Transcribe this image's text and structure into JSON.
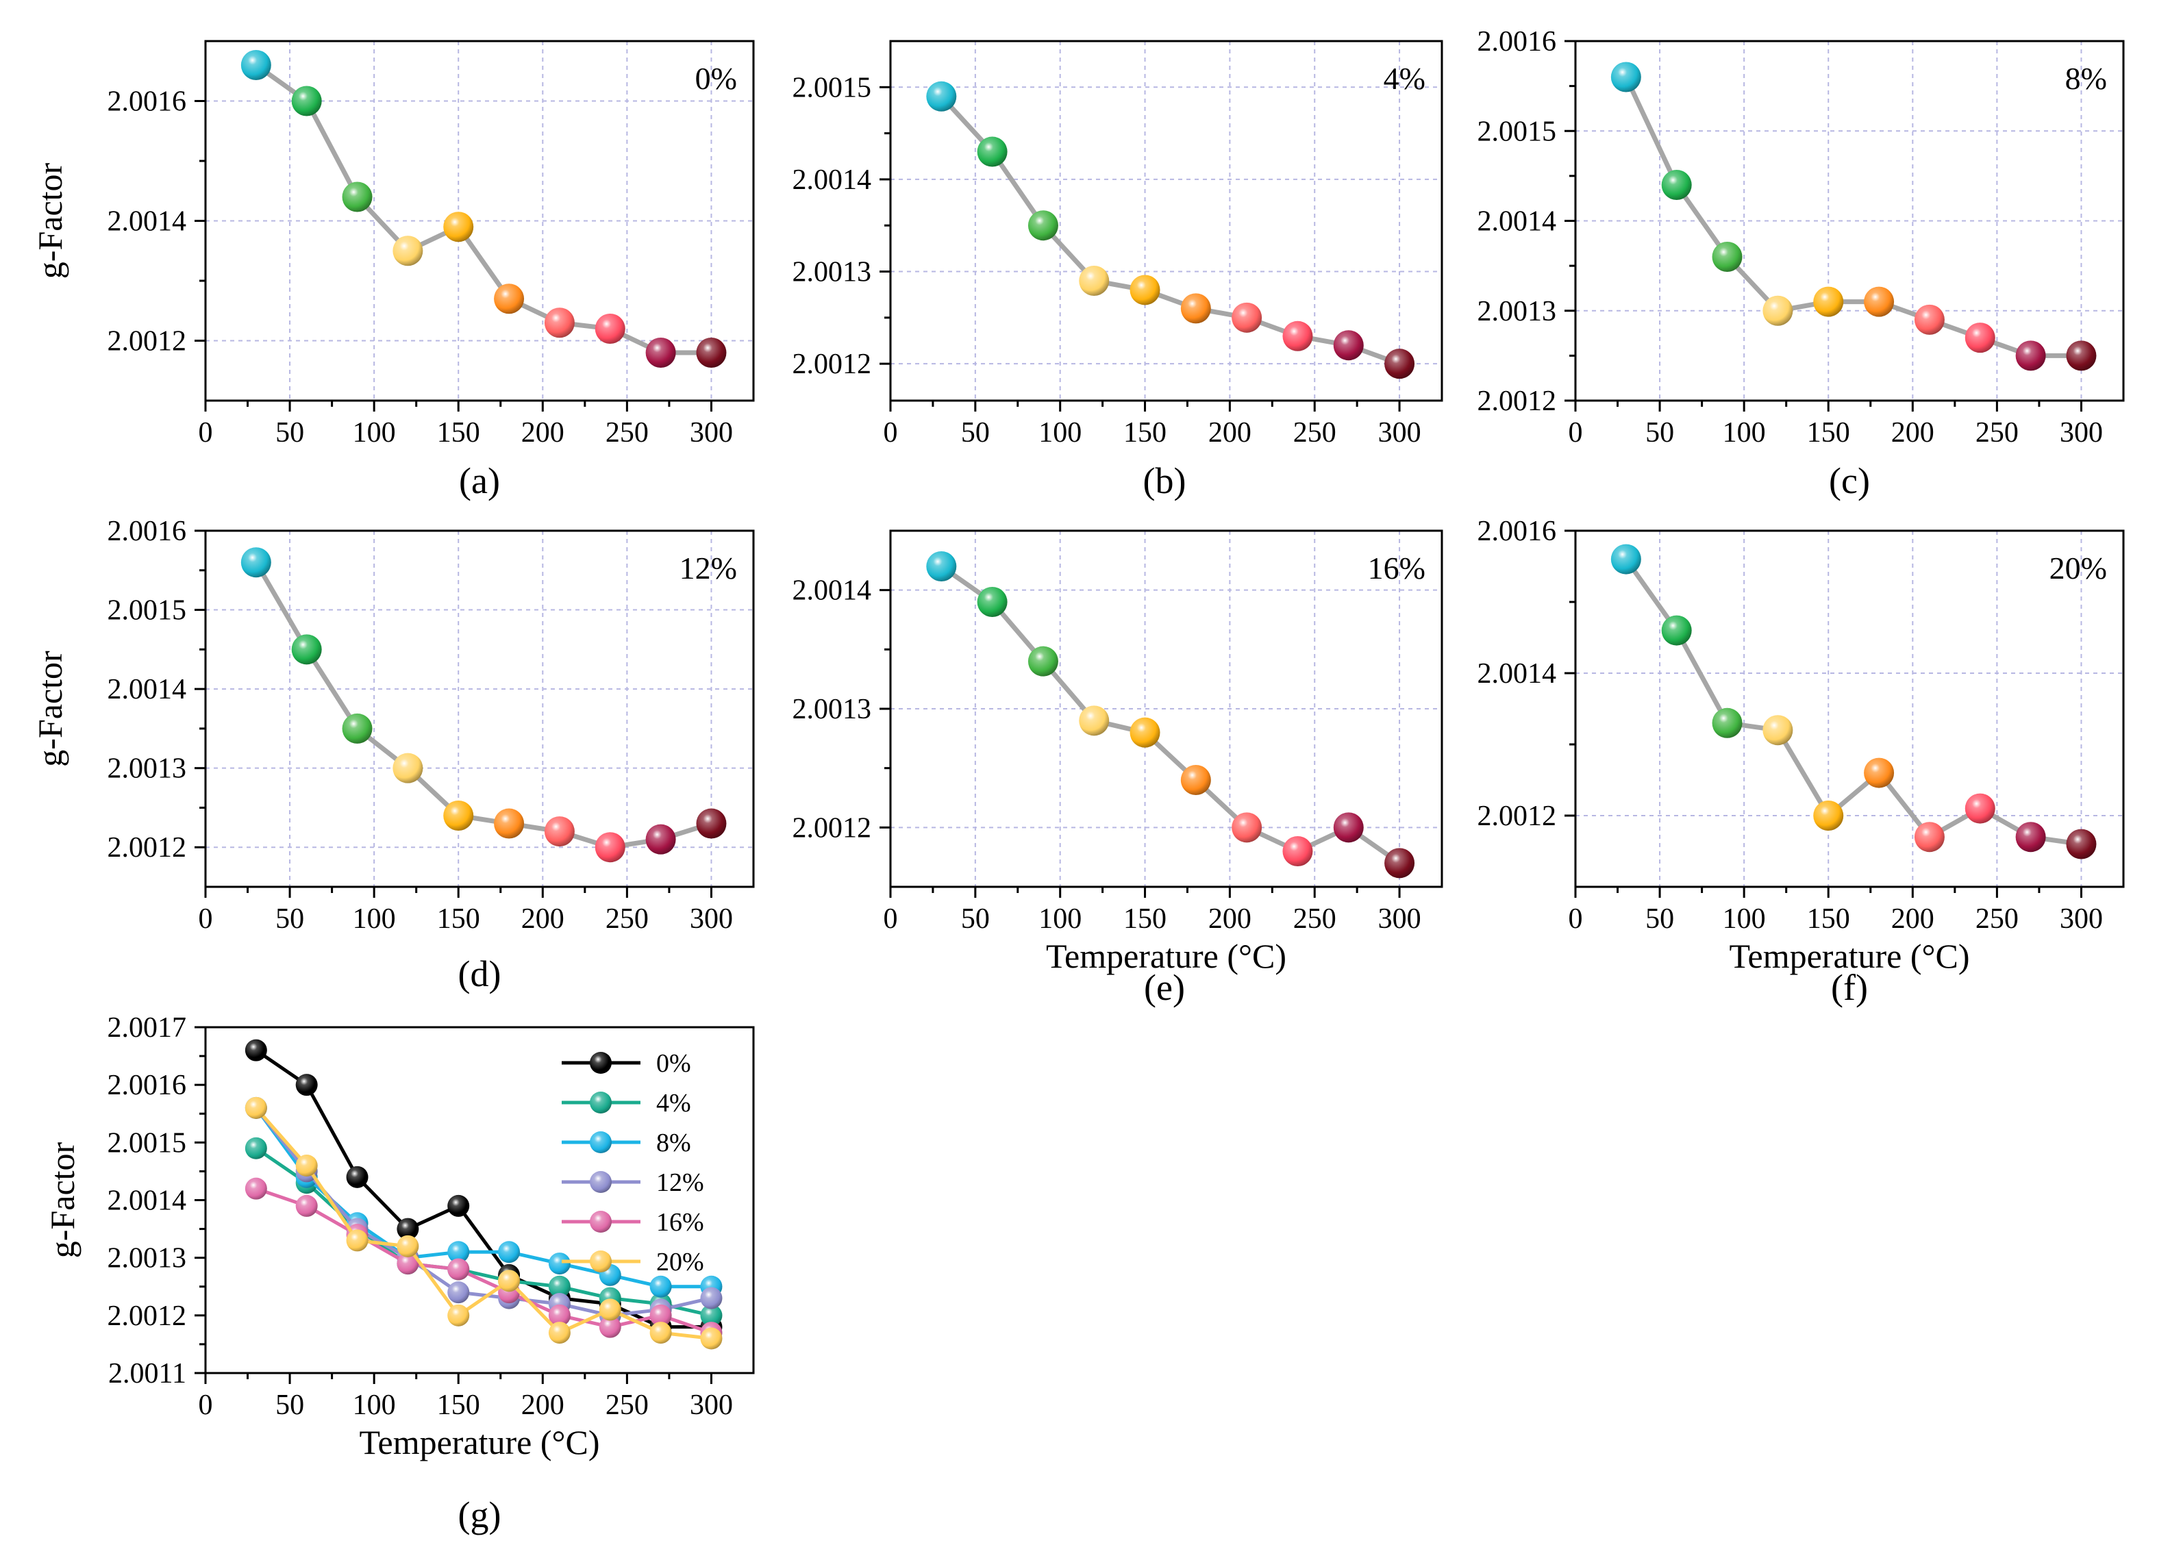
{
  "figure": {
    "panel_captions": [
      "(a)",
      "(b)",
      "(c)",
      "(d)",
      "(e)",
      "(f)",
      "(g)"
    ]
  },
  "chart_data": [
    {
      "id": "a",
      "type": "line",
      "title": "",
      "caption": "(a)",
      "annotation": "0%",
      "xlabel": "",
      "ylabel": "g-Factor",
      "xlim": [
        0,
        325
      ],
      "ylim": [
        2.0011,
        2.0017
      ],
      "xticks": [
        0,
        50,
        100,
        150,
        200,
        250,
        300
      ],
      "yticks": [
        2.0012,
        2.0014,
        2.0016
      ],
      "ytick_labels": [
        "2.0012",
        "2.0014",
        "2.0016"
      ],
      "x": [
        30,
        60,
        90,
        120,
        150,
        180,
        210,
        240,
        270,
        300
      ],
      "values": [
        2.00166,
        2.0016,
        2.00144,
        2.00135,
        2.00139,
        2.00127,
        2.00123,
        2.00122,
        2.00118,
        2.00118
      ],
      "grid": true
    },
    {
      "id": "b",
      "type": "line",
      "title": "",
      "caption": "(b)",
      "annotation": "4%",
      "xlabel": "",
      "ylabel": "",
      "xlim": [
        0,
        325
      ],
      "ylim": [
        2.00116,
        2.00155
      ],
      "xticks": [
        0,
        50,
        100,
        150,
        200,
        250,
        300
      ],
      "yticks": [
        2.0012,
        2.0013,
        2.0014,
        2.0015
      ],
      "ytick_labels": [
        "2.0012",
        "2.0013",
        "2.0014",
        "2.0015"
      ],
      "x": [
        30,
        60,
        90,
        120,
        150,
        180,
        210,
        240,
        270,
        300
      ],
      "values": [
        2.00149,
        2.00143,
        2.00135,
        2.00129,
        2.00128,
        2.00126,
        2.00125,
        2.00123,
        2.00122,
        2.0012
      ],
      "grid": true
    },
    {
      "id": "c",
      "type": "line",
      "title": "",
      "caption": "(c)",
      "annotation": "8%",
      "xlabel": "",
      "ylabel": "",
      "xlim": [
        0,
        325
      ],
      "ylim": [
        2.0012,
        2.0016
      ],
      "xticks": [
        0,
        50,
        100,
        150,
        200,
        250,
        300
      ],
      "yticks": [
        2.0012,
        2.0013,
        2.0014,
        2.0015,
        2.0016
      ],
      "ytick_labels": [
        "2.0012",
        "2.0013",
        "2.0014",
        "2.0015",
        "2.0016"
      ],
      "x": [
        30,
        60,
        90,
        120,
        150,
        180,
        210,
        240,
        270,
        300
      ],
      "values": [
        2.00156,
        2.00144,
        2.00136,
        2.0013,
        2.00131,
        2.00131,
        2.00129,
        2.00127,
        2.00125,
        2.00125
      ],
      "grid": true
    },
    {
      "id": "d",
      "type": "line",
      "title": "",
      "caption": "(d)",
      "annotation": "12%",
      "xlabel": "",
      "ylabel": "g-Factor",
      "xlim": [
        0,
        325
      ],
      "ylim": [
        2.00115,
        2.0016
      ],
      "xticks": [
        0,
        50,
        100,
        150,
        200,
        250,
        300
      ],
      "yticks": [
        2.0012,
        2.0013,
        2.0014,
        2.0015,
        2.0016
      ],
      "ytick_labels": [
        "2.0012",
        "2.0013",
        "2.0014",
        "2.0015",
        "2.0016"
      ],
      "x": [
        30,
        60,
        90,
        120,
        150,
        180,
        210,
        240,
        270,
        300
      ],
      "values": [
        2.00156,
        2.00145,
        2.00135,
        2.0013,
        2.00124,
        2.00123,
        2.00122,
        2.0012,
        2.00121,
        2.00123
      ],
      "grid": true
    },
    {
      "id": "e",
      "type": "line",
      "title": "",
      "caption": "(e)",
      "annotation": "16%",
      "xlabel": "Temperature (°C)",
      "ylabel": "",
      "xlim": [
        0,
        325
      ],
      "ylim": [
        2.00115,
        2.00145
      ],
      "xticks": [
        0,
        50,
        100,
        150,
        200,
        250,
        300
      ],
      "yticks": [
        2.0012,
        2.0013,
        2.0014
      ],
      "ytick_labels": [
        "2.0012",
        "2.0013",
        "2.0014"
      ],
      "x": [
        30,
        60,
        90,
        120,
        150,
        180,
        210,
        240,
        270,
        300
      ],
      "values": [
        2.00142,
        2.00139,
        2.00134,
        2.00129,
        2.00128,
        2.00124,
        2.0012,
        2.00118,
        2.0012,
        2.00117
      ],
      "grid": true
    },
    {
      "id": "f",
      "type": "line",
      "title": "",
      "caption": "(f)",
      "annotation": "20%",
      "xlabel": "Temperature (°C)",
      "ylabel": "",
      "xlim": [
        0,
        325
      ],
      "ylim": [
        2.0011,
        2.0016
      ],
      "xticks": [
        0,
        50,
        100,
        150,
        200,
        250,
        300
      ],
      "yticks": [
        2.0012,
        2.0014,
        2.0016
      ],
      "ytick_labels": [
        "2.0012",
        "2.0014",
        "2.0016"
      ],
      "x": [
        30,
        60,
        90,
        120,
        150,
        180,
        210,
        240,
        270,
        300
      ],
      "values": [
        2.00156,
        2.00146,
        2.00133,
        2.00132,
        2.0012,
        2.00126,
        2.00117,
        2.00121,
        2.00117,
        2.00116
      ],
      "grid": true
    },
    {
      "id": "g",
      "type": "line",
      "title": "",
      "caption": "(g)",
      "xlabel": "Temperature (°C)",
      "ylabel": "g-Factor",
      "xlim": [
        0,
        325
      ],
      "ylim": [
        2.0011,
        2.0017
      ],
      "xticks": [
        0,
        50,
        100,
        150,
        200,
        250,
        300
      ],
      "yticks": [
        2.0011,
        2.0012,
        2.0013,
        2.0014,
        2.0015,
        2.0016,
        2.0017
      ],
      "ytick_labels": [
        "2.0011",
        "2.0012",
        "2.0013",
        "2.0014",
        "2.0015",
        "2.0016",
        "2.0017"
      ],
      "x": [
        30,
        60,
        90,
        120,
        150,
        180,
        210,
        240,
        270,
        300
      ],
      "legend": "top-right",
      "grid": false,
      "series": [
        {
          "name": "0%",
          "color": "#000000",
          "values": [
            2.00166,
            2.0016,
            2.00144,
            2.00135,
            2.00139,
            2.00127,
            2.00123,
            2.00122,
            2.00118,
            2.00118
          ]
        },
        {
          "name": "4%",
          "color": "#1aab8e",
          "values": [
            2.00149,
            2.00143,
            2.00135,
            2.00129,
            2.00128,
            2.00126,
            2.00125,
            2.00123,
            2.00122,
            2.0012
          ]
        },
        {
          "name": "8%",
          "color": "#1cb4e6",
          "values": [
            2.00156,
            2.00144,
            2.00136,
            2.0013,
            2.00131,
            2.00131,
            2.00129,
            2.00127,
            2.00125,
            2.00125
          ]
        },
        {
          "name": "12%",
          "color": "#8f8fcf",
          "values": [
            2.00156,
            2.00145,
            2.00135,
            2.0013,
            2.00124,
            2.00123,
            2.00122,
            2.0012,
            2.00121,
            2.00123
          ]
        },
        {
          "name": "16%",
          "color": "#e06aa8",
          "values": [
            2.00142,
            2.00139,
            2.00134,
            2.00129,
            2.00128,
            2.00124,
            2.0012,
            2.00118,
            2.0012,
            2.00117
          ]
        },
        {
          "name": "20%",
          "color": "#ffcc55",
          "values": [
            2.00156,
            2.00146,
            2.00133,
            2.00132,
            2.0012,
            2.00126,
            2.00117,
            2.00121,
            2.00117,
            2.00116
          ]
        }
      ]
    }
  ],
  "marker_colors": [
    "#1ab8d0",
    "#1fb24d",
    "#41b441",
    "#ffd466",
    "#ffb30f",
    "#ff8a1a",
    "#ff6060",
    "#ff4a60",
    "#a41444",
    "#7a0e1e"
  ],
  "line_color": "#a6a6a6",
  "grid_color": "#b7b7e2"
}
